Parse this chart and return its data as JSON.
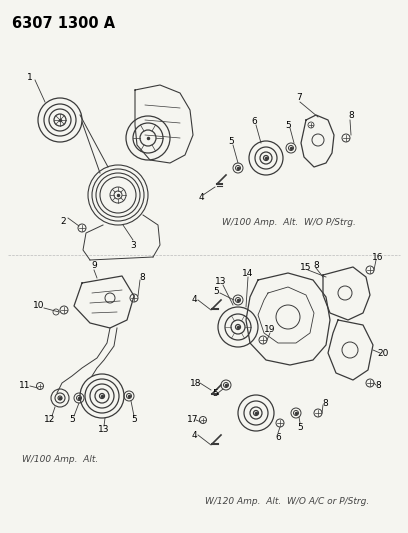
{
  "title": "6307 1300 A",
  "bg_color": "#f5f5f0",
  "line_color": "#3a3a3a",
  "caption_top_right": "W/100 Amp.  Alt.  W/O P/Strg.",
  "caption_bottom_left": "W/100 Amp.  Alt.",
  "caption_bottom_right": "W/120 Amp.  Alt.  W/O A/C or P/Strg.",
  "title_fontsize": 10.5,
  "caption_fontsize": 6.5,
  "label_fontsize": 6.5
}
